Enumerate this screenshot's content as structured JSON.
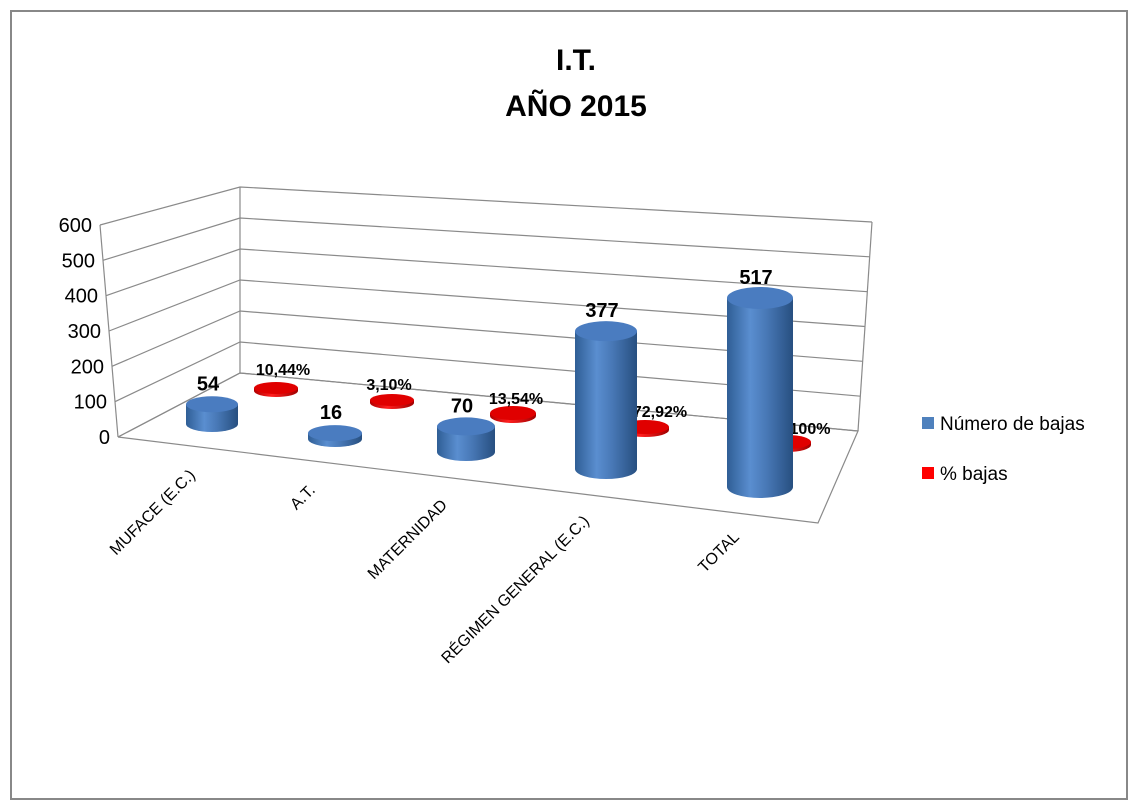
{
  "chart_data": {
    "type": "bar",
    "title": [
      "I.T.",
      "AÑO 2015"
    ],
    "categories": [
      "MUFACE (E.C.)",
      "A.T.",
      "MATERNIDAD",
      "RÉGIMEN GENERAL (E.C.)",
      "TOTAL"
    ],
    "series": [
      {
        "name": "Número de bajas",
        "values": [
          54,
          16,
          70,
          377,
          517
        ],
        "labels": [
          "54",
          "16",
          "70",
          "377",
          "517"
        ],
        "color": "#4f81bd",
        "shape": "cylinder"
      },
      {
        "name": "% bajas",
        "values": [
          10.44,
          3.1,
          13.54,
          72.92,
          100
        ],
        "labels": [
          "10,44%",
          "3,10%",
          "13,54%",
          "72,92%",
          "100%"
        ],
        "color": "#e00000",
        "shape": "cylinder"
      }
    ],
    "y_ticks": [
      "0",
      "100",
      "200",
      "300",
      "400",
      "500",
      "600"
    ],
    "ylim": [
      0,
      600
    ],
    "grid": true,
    "legend_position": "right",
    "view": "3d-perspective"
  }
}
